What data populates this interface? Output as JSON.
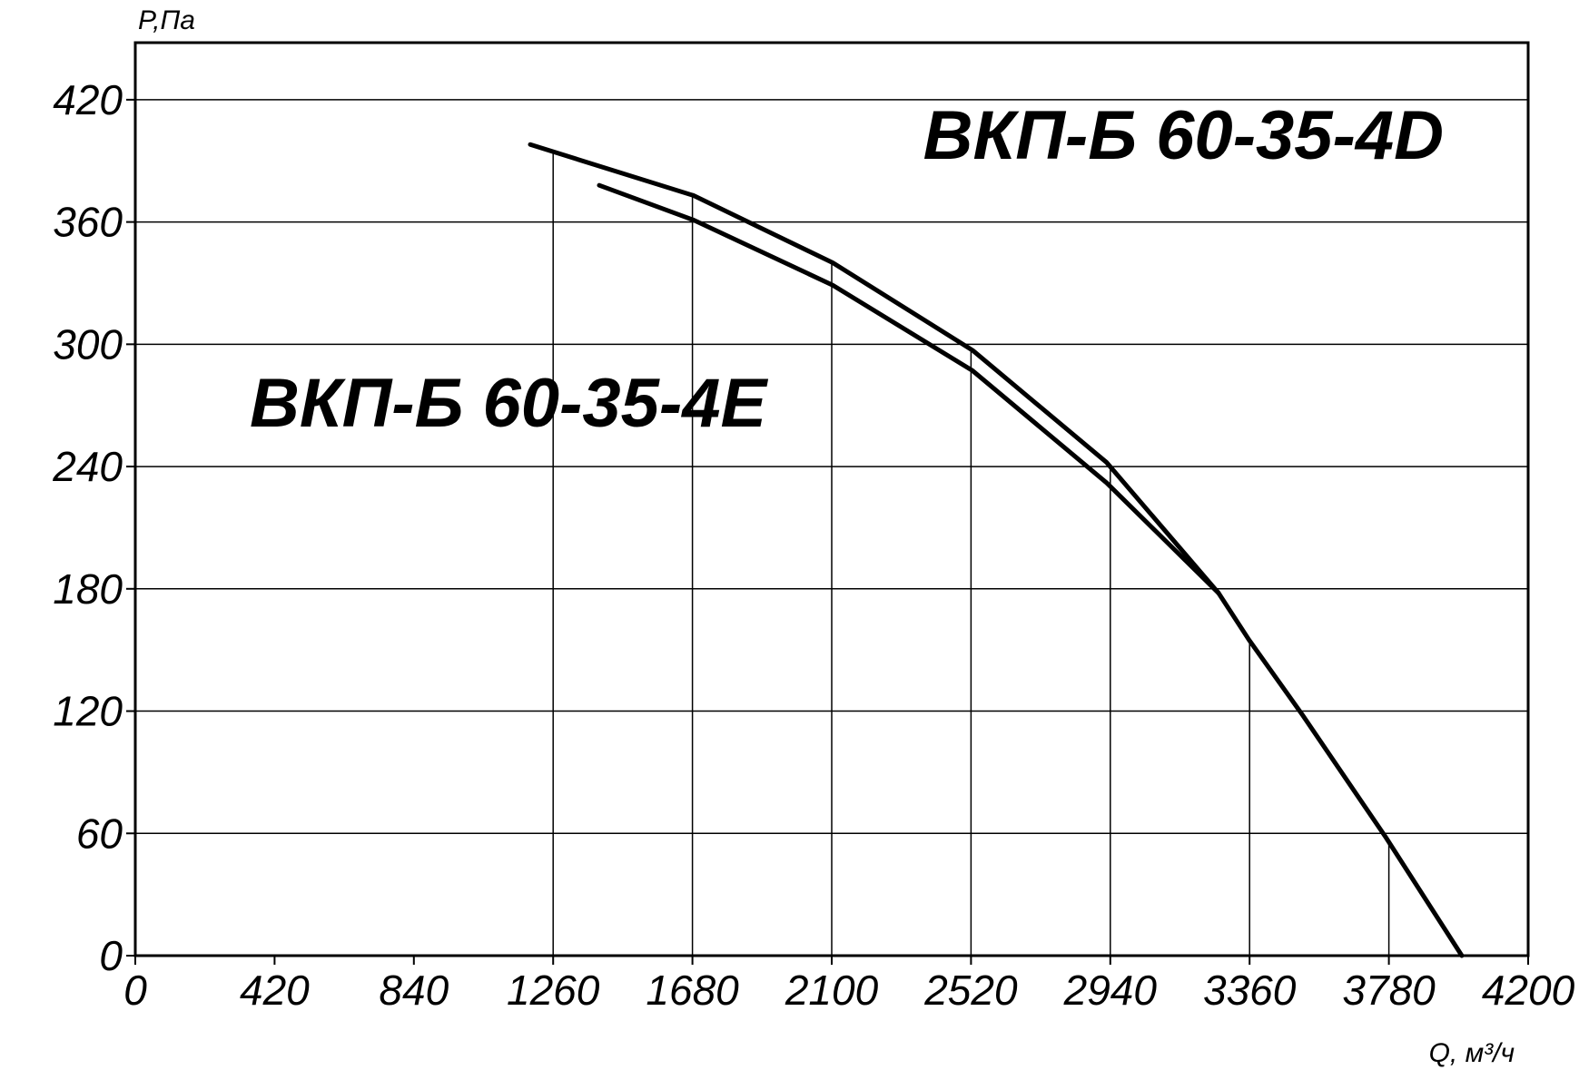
{
  "chart_data": {
    "type": "line",
    "y_label": "P,Па",
    "x_label": "Q, м³/ч",
    "xlim": [
      0,
      4200
    ],
    "ylim": [
      0,
      448
    ],
    "xticks": [
      0,
      420,
      840,
      1260,
      1680,
      2100,
      2520,
      2940,
      3360,
      3780,
      4200
    ],
    "yticks": [
      0,
      60,
      120,
      180,
      240,
      300,
      360,
      420
    ],
    "grid": true,
    "series": [
      {
        "name": "ВКП-Б 60-35-4D",
        "color": "#000000",
        "x": [
          1191,
          1683,
          2103,
          2525,
          2929,
          3266,
          3358,
          3520,
          3771,
          4000
        ],
        "values": [
          398,
          373,
          340,
          297,
          242,
          178,
          155,
          118,
          58,
          0
        ]
      },
      {
        "name": "ВКП-Б 60-35-4E",
        "color": "#000000",
        "x": [
          1399,
          1683,
          2103,
          2525,
          2929,
          3266
        ],
        "values": [
          378,
          361,
          329,
          287,
          232,
          178
        ]
      }
    ]
  }
}
